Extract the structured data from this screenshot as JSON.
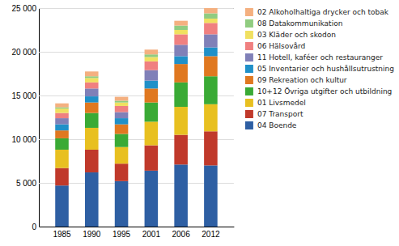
{
  "chart_data": {
    "type": "bar",
    "stacked": true,
    "grid": true,
    "legend": "right",
    "categories": [
      "1985",
      "1990",
      "1995",
      "2001",
      "2006",
      "2012"
    ],
    "series": [
      {
        "name": "04 Boende",
        "color": "#2e5fa3",
        "values": [
          4700,
          6200,
          5200,
          6400,
          7100,
          7000
        ]
      },
      {
        "name": "07 Transport",
        "color": "#c0392b",
        "values": [
          2000,
          2600,
          2000,
          2900,
          3400,
          3900
        ]
      },
      {
        "name": "01 Livsmedel",
        "color": "#e8c020",
        "values": [
          2100,
          2500,
          1900,
          2700,
          3200,
          3100
        ]
      },
      {
        "name": "10+12 Övriga utgifter och utbildning",
        "color": "#3aaa35",
        "values": [
          1300,
          1700,
          1500,
          2200,
          2800,
          3200
        ]
      },
      {
        "name": "09 Rekreation och kultur",
        "color": "#e07820",
        "values": [
          900,
          1200,
          1100,
          1600,
          2100,
          2300
        ]
      },
      {
        "name": "05 Inventarier och hushållsutrustning",
        "color": "#2090c8",
        "values": [
          700,
          700,
          700,
          900,
          900,
          1000
        ]
      },
      {
        "name": "11 Hotell, kaféer och restauranger",
        "color": "#8080b8",
        "values": [
          700,
          900,
          700,
          1200,
          1300,
          1500
        ]
      },
      {
        "name": "06 Hälsovård",
        "color": "#f08080",
        "values": [
          600,
          700,
          700,
          1000,
          1200,
          1300
        ]
      },
      {
        "name": "03 Kläder och skodon",
        "color": "#f0e060",
        "values": [
          500,
          500,
          400,
          500,
          500,
          500
        ]
      },
      {
        "name": "08 Datakommunikation",
        "color": "#90cc80",
        "values": [
          150,
          200,
          200,
          300,
          500,
          600
        ]
      },
      {
        "name": "02 Alkoholhaltiga drycker och tobak",
        "color": "#f4b080",
        "values": [
          450,
          550,
          450,
          550,
          550,
          600
        ]
      }
    ],
    "ylim": [
      0,
      25000
    ],
    "yticks": [
      0,
      {
        "value": 5000,
        "label": "5 000"
      },
      {
        "value": 10000,
        "label": "10 000"
      },
      {
        "value": 15000,
        "label": "15 000"
      },
      {
        "value": 20000,
        "label": "20 000"
      },
      {
        "value": 25000,
        "label": "25 000"
      }
    ]
  }
}
